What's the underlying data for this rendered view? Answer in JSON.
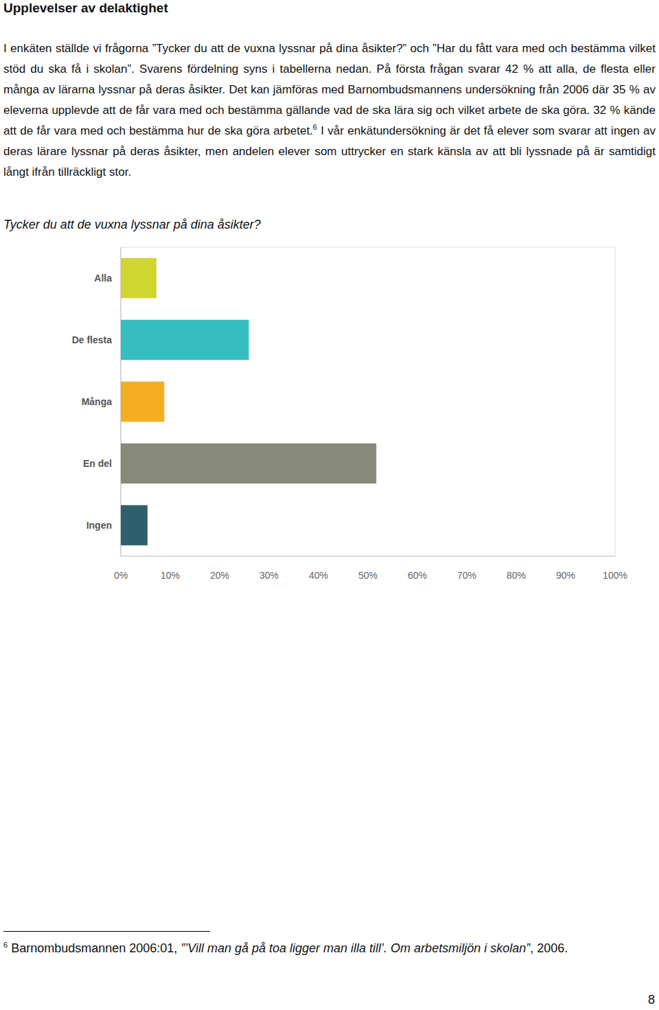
{
  "heading": "Upplevelser av delaktighet",
  "paragraph": {
    "text_1": "I enkäten ställde vi frågorna ”Tycker du att de vuxna lyssnar på dina åsikter?” och ”Har du fått vara med och bestämma vilket stöd du ska få i skolan”. Svarens fördelning syns i tabellerna nedan. På första frågan svarar 42 % att alla, de flesta eller många av lärarna lyssnar på deras åsikter. Det kan jämföras med Barnombudsmannens undersökning från 2006 där 35 % av eleverna upplevde att de får vara med och bestämma gällande vad de ska lära sig och vilket arbete de ska göra. 32 % kände att de får vara med och bestämma hur de ska göra arbetet.",
    "footnote_ref": "6",
    "text_2": " I vår enkätundersökning är det få elever som svarar att ingen av deras lärare lyssnar på deras åsikter, men andelen elever som uttrycker en stark känsla av att bli lyssnade på är samtidigt långt ifrån tillräckligt stor."
  },
  "chart_title": "Tycker du att de vuxna lyssnar på dina åsikter?",
  "chart_data": {
    "type": "bar",
    "orientation": "horizontal",
    "categories": [
      "Alla",
      "De flesta",
      "Många",
      "En del",
      "Ingen"
    ],
    "values": [
      7.2,
      25.9,
      8.8,
      51.7,
      5.4
    ],
    "colors": [
      "#cfd531",
      "#35bdbf",
      "#f5ae22",
      "#878a78",
      "#2f5f6c"
    ],
    "xlim": [
      0,
      100
    ],
    "xticks": [
      {
        "value": 0,
        "label": "0%"
      },
      {
        "value": 10,
        "label": "10%"
      },
      {
        "value": 20,
        "label": "20%"
      },
      {
        "value": 30,
        "label": "30%"
      },
      {
        "value": 40,
        "label": "40%"
      },
      {
        "value": 50,
        "label": "50%"
      },
      {
        "value": 60,
        "label": "60%"
      },
      {
        "value": 70,
        "label": "70%"
      },
      {
        "value": 80,
        "label": "80%"
      },
      {
        "value": 90,
        "label": "90%"
      },
      {
        "value": 100,
        "label": "100%"
      }
    ],
    "grid": false
  },
  "footnote": {
    "marker": "6",
    "text": " Barnombudsmannen 2006:01, ",
    "title": "”’Vill man gå på toa ligger man illa till’. Om arbetsmiljön i skolan”",
    "text_end": ", 2006."
  },
  "page_number": "8"
}
